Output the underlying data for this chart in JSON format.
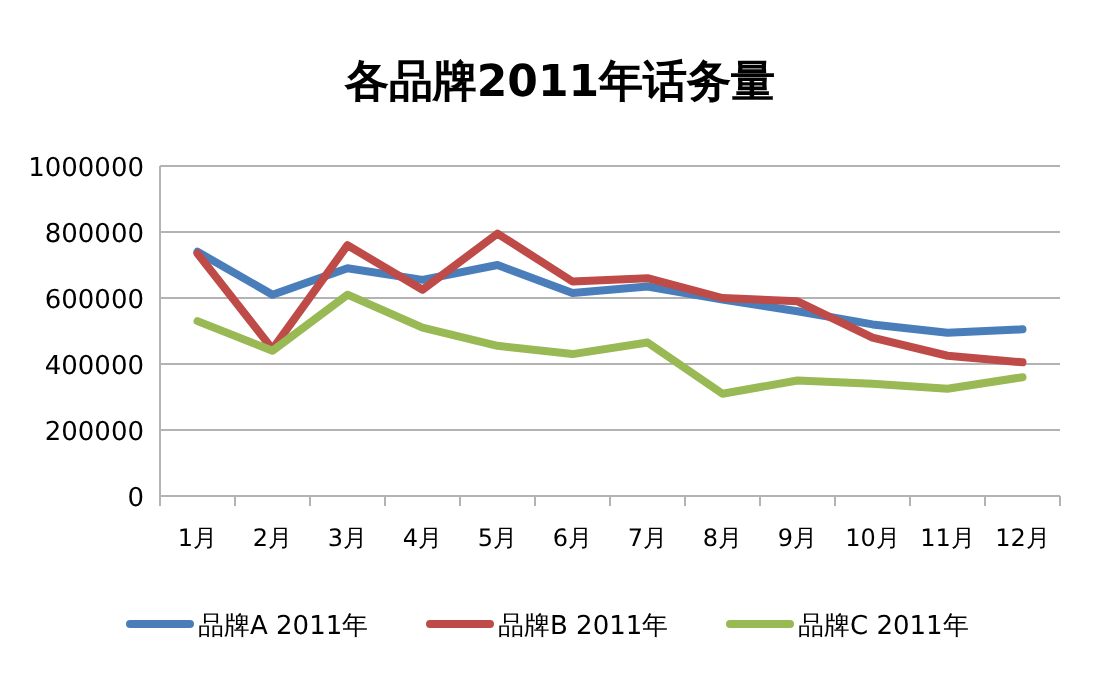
{
  "chart_data": {
    "type": "line",
    "title": "各品牌2011年话务量",
    "categories": [
      "1月",
      "2月",
      "3月",
      "4月",
      "5月",
      "6月",
      "7月",
      "8月",
      "9月",
      "10月",
      "11月",
      "12月"
    ],
    "series": [
      {
        "name": "品牌A 2011年",
        "color": "#4a7ebb",
        "values": [
          740000,
          610000,
          690000,
          655000,
          700000,
          615000,
          635000,
          595000,
          560000,
          520000,
          495000,
          505000
        ]
      },
      {
        "name": "品牌B 2011年",
        "color": "#be4b48",
        "values": [
          735000,
          445000,
          760000,
          625000,
          795000,
          650000,
          660000,
          600000,
          590000,
          480000,
          425000,
          405000
        ]
      },
      {
        "name": "品牌C 2011年",
        "color": "#98b954",
        "values": [
          530000,
          440000,
          610000,
          510000,
          455000,
          430000,
          465000,
          310000,
          350000,
          340000,
          325000,
          360000
        ]
      }
    ],
    "ylim": [
      0,
      1000000
    ],
    "yticks": [
      0,
      200000,
      400000,
      600000,
      800000,
      1000000
    ],
    "grid": "y",
    "legend": "bottom",
    "marker": "none",
    "line_style": "solid"
  }
}
